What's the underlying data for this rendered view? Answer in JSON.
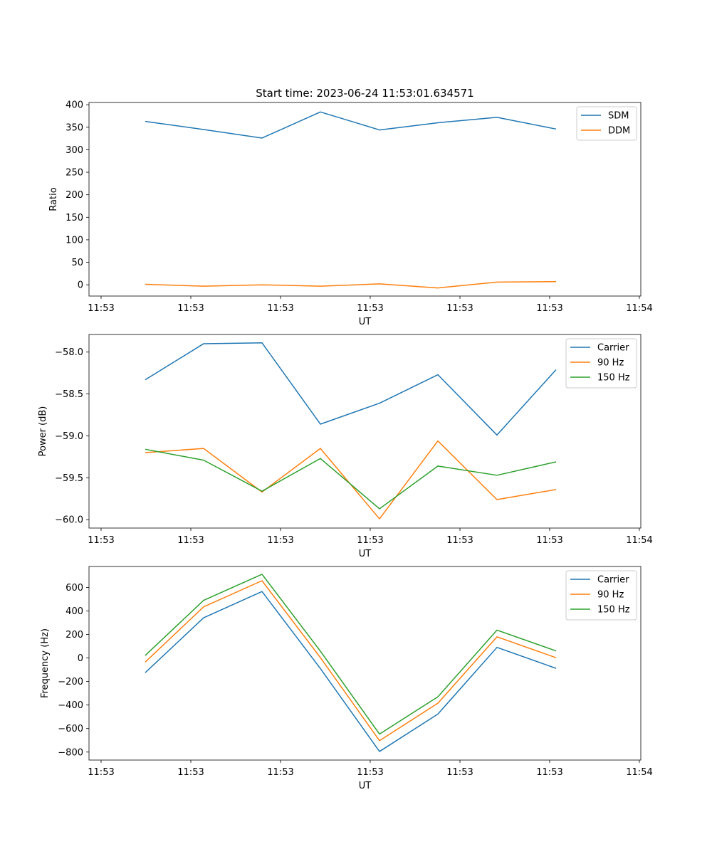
{
  "figure_title": "Start time: 2023-06-24 11:53:01.634571",
  "chart_data": [
    {
      "type": "line",
      "xlabel": "UT",
      "ylabel": "Ratio",
      "x_tick_labels": [
        "11:53",
        "11:53",
        "11:53",
        "11:53",
        "11:53",
        "11:53",
        "11:54"
      ],
      "y_ticks": [
        0,
        50,
        100,
        150,
        200,
        250,
        300,
        350,
        400
      ],
      "ylim": [
        -25,
        405
      ],
      "legend_position": "top-right",
      "series": [
        {
          "name": "SDM",
          "color": "#1f77b4",
          "values": [
            363,
            345,
            326,
            384,
            344,
            360,
            372,
            346
          ]
        },
        {
          "name": "DDM",
          "color": "#ff7f0e",
          "values": [
            1,
            -3,
            0,
            -3,
            2,
            -7,
            6,
            7
          ]
        }
      ]
    },
    {
      "type": "line",
      "xlabel": "UT",
      "ylabel": "Power (dB)",
      "x_tick_labels": [
        "11:53",
        "11:53",
        "11:53",
        "11:53",
        "11:53",
        "11:53",
        "11:54"
      ],
      "y_ticks": [
        -60.0,
        -59.5,
        -59.0,
        -58.5,
        -58.0
      ],
      "y_tick_labels": [
        "−60.0",
        "−59.5",
        "−59.0",
        "−58.5",
        "−58.0"
      ],
      "ylim": [
        -60.1,
        -57.79
      ],
      "legend_position": "top-right",
      "series": [
        {
          "name": "Carrier",
          "color": "#1f77b4",
          "values": [
            -58.33,
            -57.9,
            -57.89,
            -58.86,
            -58.61,
            -58.27,
            -58.99,
            -58.21
          ]
        },
        {
          "name": "90 Hz",
          "color": "#ff7f0e",
          "values": [
            -59.2,
            -59.15,
            -59.67,
            -59.15,
            -59.99,
            -59.06,
            -59.76,
            -59.64
          ]
        },
        {
          "name": "150 Hz",
          "color": "#2ca02c",
          "values": [
            -59.16,
            -59.29,
            -59.66,
            -59.27,
            -59.87,
            -59.36,
            -59.47,
            -59.31
          ]
        }
      ]
    },
    {
      "type": "line",
      "xlabel": "UT",
      "ylabel": "Frequency (Hz)",
      "x_tick_labels": [
        "11:53",
        "11:53",
        "11:53",
        "11:53",
        "11:53",
        "11:53",
        "11:54"
      ],
      "y_ticks": [
        -800,
        -600,
        -400,
        -200,
        0,
        200,
        400,
        600
      ],
      "y_tick_labels": [
        "−800",
        "−600",
        "−400",
        "−200",
        "0",
        "200",
        "400",
        "600"
      ],
      "ylim": [
        -868,
        778
      ],
      "legend_position": "top-right",
      "series": [
        {
          "name": "Carrier",
          "color": "#1f77b4",
          "values": [
            -125,
            342,
            565,
            -90,
            -795,
            -477,
            90,
            -88
          ]
        },
        {
          "name": "90 Hz",
          "color": "#ff7f0e",
          "values": [
            -35,
            435,
            657,
            3,
            -703,
            -385,
            180,
            2
          ]
        },
        {
          "name": "150 Hz",
          "color": "#2ca02c",
          "values": [
            22,
            490,
            712,
            58,
            -647,
            -330,
            237,
            60
          ]
        }
      ]
    }
  ]
}
